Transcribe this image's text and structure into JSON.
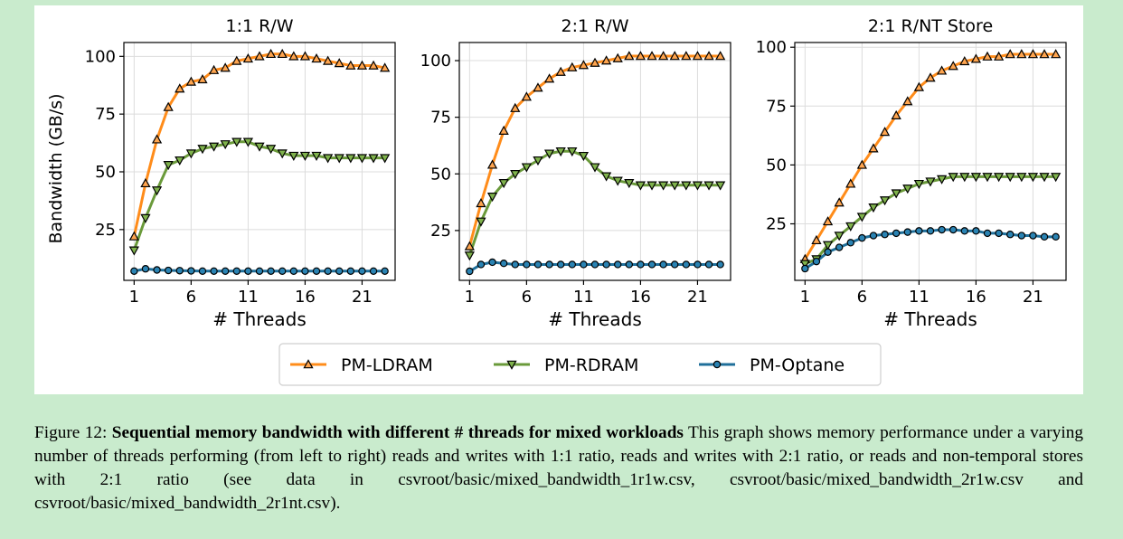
{
  "chart_data": [
    {
      "type": "line",
      "title": "1:1 R/W",
      "xlabel": "# Threads",
      "ylabel": "Bandwidth (GB/s)",
      "xlim": [
        0.1,
        23.9
      ],
      "ylim": [
        3,
        106
      ],
      "xticks": [
        1,
        6,
        11,
        16,
        21
      ],
      "yticks": [
        25,
        50,
        75,
        100
      ],
      "grid": true,
      "x": [
        1,
        2,
        3,
        4,
        5,
        6,
        7,
        8,
        9,
        10,
        11,
        12,
        13,
        14,
        15,
        16,
        17,
        18,
        19,
        20,
        21,
        22,
        23
      ],
      "series": [
        {
          "name": "PM-LDRAM",
          "values": [
            22,
            45,
            64,
            78,
            86,
            89,
            90,
            94,
            95,
            98,
            99,
            100,
            101,
            101,
            100,
            100,
            99,
            98,
            97,
            96,
            96,
            96,
            95
          ]
        },
        {
          "name": "PM-RDRAM",
          "values": [
            16,
            30,
            42,
            53,
            55,
            58,
            60,
            61,
            62,
            63,
            63,
            61,
            60,
            58,
            57,
            57,
            57,
            56,
            56,
            56,
            56,
            56,
            56
          ]
        },
        {
          "name": "PM-Optane",
          "values": [
            7,
            8,
            7.5,
            7.3,
            7.2,
            7.1,
            7,
            7,
            7,
            7,
            7,
            7,
            7,
            7,
            7,
            7,
            7,
            7,
            7,
            7,
            7,
            7,
            7
          ]
        }
      ]
    },
    {
      "type": "line",
      "title": "2:1 R/W",
      "xlabel": "# Threads",
      "ylabel": "",
      "xlim": [
        0.1,
        23.9
      ],
      "ylim": [
        3,
        108
      ],
      "xticks": [
        1,
        6,
        11,
        16,
        21
      ],
      "yticks": [
        25,
        50,
        75,
        100
      ],
      "grid": true,
      "x": [
        1,
        2,
        3,
        4,
        5,
        6,
        7,
        8,
        9,
        10,
        11,
        12,
        13,
        14,
        15,
        16,
        17,
        18,
        19,
        20,
        21,
        22,
        23
      ],
      "series": [
        {
          "name": "PM-LDRAM",
          "values": [
            18,
            37,
            54,
            69,
            79,
            84,
            88,
            92,
            95,
            97,
            98,
            99,
            100,
            101,
            102,
            102,
            102,
            102,
            102,
            102,
            102,
            102,
            102
          ]
        },
        {
          "name": "PM-RDRAM",
          "values": [
            14,
            29,
            40,
            46,
            50,
            53,
            56,
            59,
            60,
            60,
            58,
            53,
            49,
            47,
            46,
            45,
            45,
            45,
            45,
            45,
            45,
            45,
            45
          ]
        },
        {
          "name": "PM-Optane",
          "values": [
            7,
            10,
            11,
            10.5,
            10,
            10,
            10,
            10,
            10,
            10,
            10,
            10,
            10,
            10,
            10,
            10,
            10,
            10,
            10,
            10,
            10,
            10,
            10
          ]
        }
      ]
    },
    {
      "type": "line",
      "title": "2:1 R/NT Store",
      "xlabel": "# Threads",
      "ylabel": "",
      "xlim": [
        0.1,
        23.9
      ],
      "ylim": [
        1,
        102
      ],
      "xticks": [
        1,
        6,
        11,
        16,
        21
      ],
      "yticks": [
        25,
        50,
        75,
        100
      ],
      "grid": true,
      "x": [
        1,
        2,
        3,
        4,
        5,
        6,
        7,
        8,
        9,
        10,
        11,
        12,
        13,
        14,
        15,
        16,
        17,
        18,
        19,
        20,
        21,
        22,
        23
      ],
      "series": [
        {
          "name": "PM-LDRAM",
          "values": [
            10,
            18,
            26,
            34,
            42,
            50,
            57,
            64,
            71,
            77,
            83,
            87,
            90,
            92,
            94,
            95,
            96,
            96,
            97,
            97,
            97,
            97,
            97
          ]
        },
        {
          "name": "PM-RDRAM",
          "values": [
            8,
            10,
            16,
            20,
            24,
            28,
            32,
            35,
            38,
            40,
            42,
            43,
            44,
            45,
            45,
            45,
            45,
            45,
            45,
            45,
            45,
            45,
            45
          ]
        },
        {
          "name": "PM-Optane",
          "values": [
            6,
            9,
            13,
            15,
            17,
            19,
            20,
            20.5,
            21,
            21.5,
            22,
            22,
            22.5,
            22.5,
            22,
            22,
            21,
            21,
            20.5,
            20,
            20,
            19.5,
            19.5
          ]
        }
      ]
    }
  ],
  "legend": {
    "items": [
      {
        "label": "PM-LDRAM",
        "color": "#ff8c1a",
        "marker": "triangle-up"
      },
      {
        "label": "PM-RDRAM",
        "color": "#6a9a3a",
        "marker": "triangle-down"
      },
      {
        "label": "PM-Optane",
        "color": "#1f6f9a",
        "marker": "circle"
      }
    ]
  },
  "colors": {
    "PM-LDRAM": "#ff8c1a",
    "PM-RDRAM": "#6a9a3a",
    "PM-Optane": "#1f6f9a",
    "marker_ldram": "#ffa54f",
    "marker_rdram": "#7fb24c",
    "marker_optane": "#2a83b3"
  },
  "caption": {
    "prefix": "Figure 12: ",
    "bold": "Sequential memory bandwidth with different # threads for mixed workloads",
    "text": " This graph shows memory performance under a varying number of threads performing (from left to right) reads and writes with 1:1 ratio, reads and writes with 2:1 ratio, or reads and non-temporal stores with 2:1 ratio (see data in csvroot/basic/mixed_bandwidth_1r1w.csv,  csvroot/basic/mixed_bandwidth_2r1w.csv and  csvroot/basic/mixed_bandwidth_2r1nt.csv)."
  }
}
